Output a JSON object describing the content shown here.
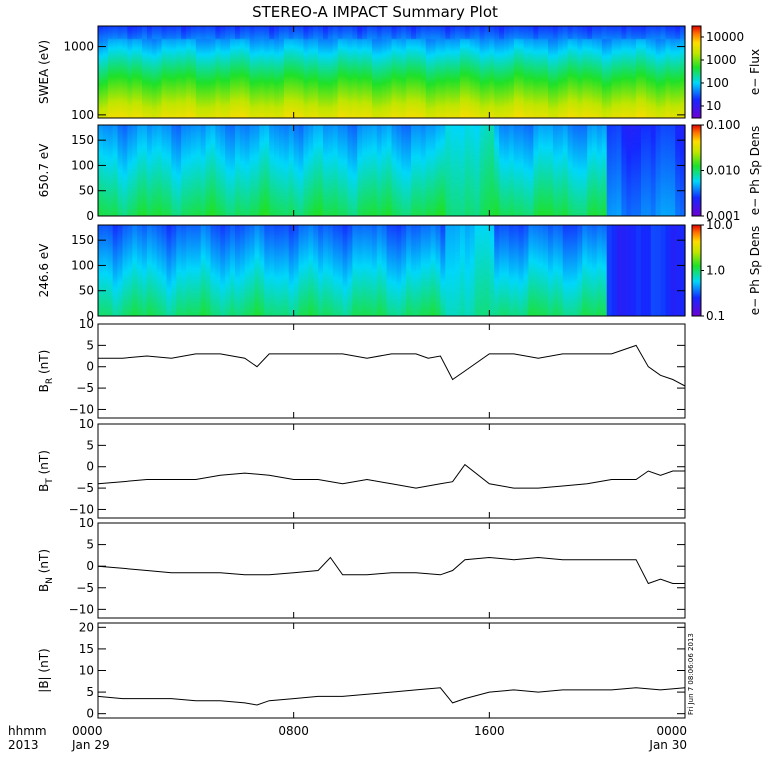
{
  "title": "STEREO-A IMPACT Summary Plot",
  "footer": {
    "hhmm": "hhmm",
    "year": "2013",
    "time_ticks": [
      "0000",
      "0800",
      "1600",
      "0000"
    ],
    "date_ticks": [
      "Jan 29",
      "",
      "",
      "Jan 30"
    ],
    "side_stamp": "Fri Jun  7 08:06:06 2013"
  },
  "chart_data": [
    {
      "type": "heatmap",
      "id": "swea",
      "ylabel": "SWEA (eV)",
      "yscale": "log",
      "ylim": [
        90,
        2000
      ],
      "yticks": [
        100,
        1000
      ],
      "ytick_labels": [
        "100",
        "1000"
      ],
      "colorbar": {
        "label": "e− Flux",
        "scale": "log",
        "range": [
          3,
          30000
        ],
        "ticks": [
          10,
          100,
          1000,
          10000
        ],
        "tick_labels": [
          "10",
          "100",
          "1000",
          "10000"
        ]
      }
    },
    {
      "type": "heatmap",
      "id": "pad650",
      "ylabel": "650.7 eV",
      "ylim": [
        0,
        180
      ],
      "yticks": [
        0,
        50,
        100,
        150
      ],
      "ytick_labels": [
        "0",
        "50",
        "100",
        "150"
      ],
      "colorbar": {
        "label": "e− Ph Sp Dens",
        "scale": "log",
        "range": [
          0.001,
          0.1
        ],
        "ticks": [
          0.001,
          0.01,
          0.1
        ],
        "tick_labels": [
          "0.001",
          "0.010",
          "0.100"
        ]
      }
    },
    {
      "type": "heatmap",
      "id": "pad246",
      "ylabel": "246.6 eV",
      "ylim": [
        0,
        180
      ],
      "yticks": [
        0,
        50,
        100,
        150
      ],
      "ytick_labels": [
        "0",
        "50",
        "100",
        "150"
      ],
      "colorbar": {
        "label": "e− Ph Sp Dens",
        "scale": "log",
        "range": [
          0.1,
          10
        ],
        "ticks": [
          0.1,
          1,
          10
        ],
        "tick_labels": [
          "0.1",
          "1.0",
          "10.0"
        ]
      }
    },
    {
      "type": "line",
      "id": "br",
      "ylabel": "B",
      "ylabel_sub": "R",
      "ylabel_unit": " (nT)",
      "ylim": [
        -12,
        10
      ],
      "yticks": [
        -10,
        -5,
        0,
        5,
        10
      ],
      "ytick_labels": [
        "−10",
        "−5",
        "0",
        "5",
        "10"
      ],
      "x": [
        0,
        1,
        2,
        3,
        4,
        5,
        6,
        6.5,
        7,
        7.5,
        8,
        9,
        10,
        11,
        12,
        13,
        13.5,
        14,
        14.5,
        15,
        16,
        17,
        18,
        19,
        20,
        21,
        21.5,
        22,
        22.5,
        23,
        23.5,
        24
      ],
      "y": [
        2,
        2,
        2.5,
        2,
        3,
        3,
        2,
        0,
        3,
        3,
        3,
        3,
        3,
        2,
        3,
        3,
        2,
        2.5,
        -3,
        -1,
        3,
        3,
        2,
        3,
        3,
        3,
        4,
        5,
        0,
        -2,
        -3,
        -4.5
      ]
    },
    {
      "type": "line",
      "id": "bt",
      "ylabel": "B",
      "ylabel_sub": "T",
      "ylabel_unit": " (nT)",
      "ylim": [
        -12,
        10
      ],
      "yticks": [
        -10,
        -5,
        0,
        5,
        10
      ],
      "ytick_labels": [
        "−10",
        "−5",
        "0",
        "5",
        "10"
      ],
      "x": [
        0,
        1,
        2,
        3,
        4,
        5,
        6,
        7,
        8,
        9,
        10,
        11,
        12,
        13,
        14,
        14.5,
        15,
        16,
        17,
        18,
        19,
        20,
        21,
        22,
        22.5,
        23,
        23.5,
        24
      ],
      "y": [
        -4,
        -3.5,
        -3,
        -3,
        -3,
        -2,
        -1.5,
        -2,
        -3,
        -3,
        -4,
        -3,
        -4,
        -5,
        -4,
        -3.5,
        0.5,
        -4,
        -5,
        -5,
        -4.5,
        -4,
        -3,
        -3,
        -1,
        -2,
        -1,
        -1
      ]
    },
    {
      "type": "line",
      "id": "bn",
      "ylabel": "B",
      "ylabel_sub": "N",
      "ylabel_unit": " (nT)",
      "ylim": [
        -12,
        10
      ],
      "yticks": [
        -10,
        -5,
        0,
        5,
        10
      ],
      "ytick_labels": [
        "−10",
        "−5",
        "0",
        "5",
        "10"
      ],
      "x": [
        0,
        1,
        2,
        3,
        4,
        5,
        6,
        7,
        8,
        9,
        9.5,
        10,
        11,
        12,
        13,
        14,
        14.5,
        15,
        16,
        17,
        18,
        19,
        20,
        21,
        21.5,
        22,
        22.5,
        23,
        23.5,
        24
      ],
      "y": [
        0,
        -0.5,
        -1,
        -1.5,
        -1.5,
        -1.5,
        -2,
        -2,
        -1.5,
        -1,
        2,
        -2,
        -2,
        -1.5,
        -1.5,
        -2,
        -1,
        1.5,
        2,
        1.5,
        2,
        1.5,
        1.5,
        1.5,
        1.5,
        1.5,
        -4,
        -3,
        -4,
        -4
      ]
    },
    {
      "type": "line",
      "id": "bmag",
      "ylabel": "|B| (nT)",
      "ylim": [
        -1,
        21
      ],
      "yticks": [
        0,
        5,
        10,
        15,
        20
      ],
      "ytick_labels": [
        "0",
        "5",
        "10",
        "15",
        "20"
      ],
      "x": [
        0,
        1,
        2,
        3,
        4,
        5,
        6,
        6.5,
        7,
        8,
        9,
        10,
        11,
        12,
        13,
        14,
        14.5,
        15,
        16,
        17,
        18,
        19,
        20,
        21,
        22,
        23,
        24
      ],
      "y": [
        4,
        3.5,
        3.5,
        3.5,
        3,
        3,
        2.5,
        2,
        3,
        3.5,
        4,
        4,
        4.5,
        5,
        5.5,
        6,
        2.5,
        3.5,
        5,
        5.5,
        5,
        5.5,
        5.5,
        5.5,
        6,
        5.5,
        6
      ]
    }
  ]
}
